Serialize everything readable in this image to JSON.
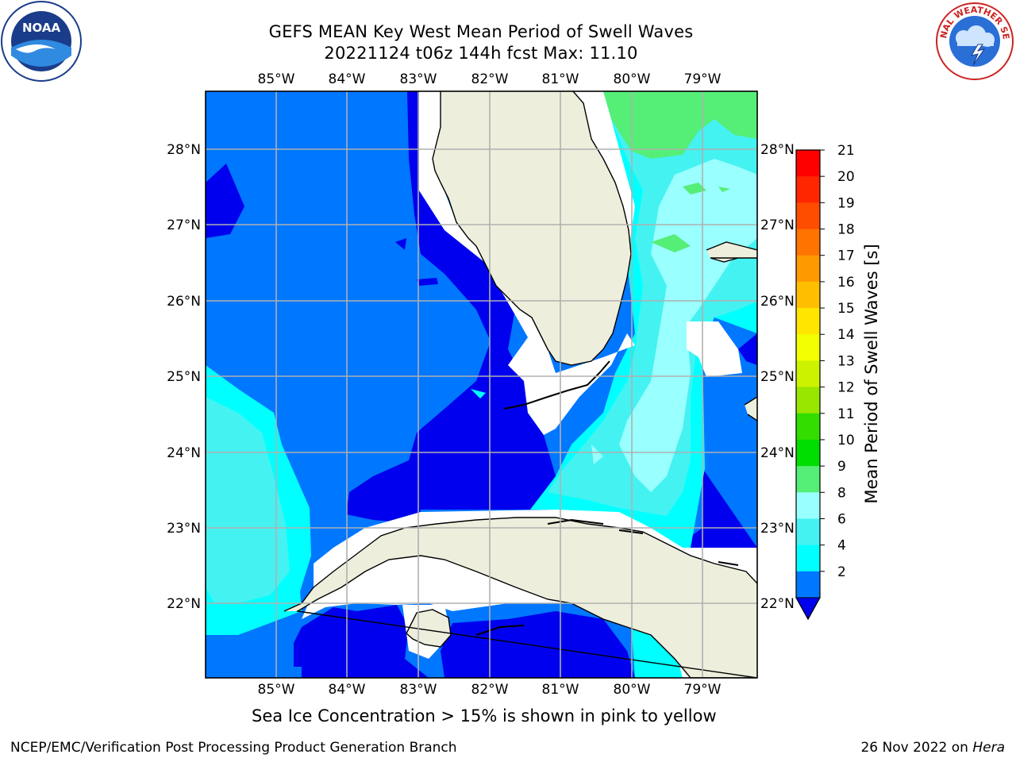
{
  "header": {
    "title_line1": "GEFS MEAN Key West Mean Period of Swell Waves",
    "title_line2": "20221124 t06z 144h fcst   Max: 11.10"
  },
  "logos": {
    "left": {
      "icon": "noaa-logo-icon",
      "text": "NOAA"
    },
    "right": {
      "icon": "nws-logo-icon",
      "text": "NATIONAL WEATHER SERVICE"
    }
  },
  "map": {
    "lon_ticks": [
      "85°W",
      "84°W",
      "83°W",
      "82°W",
      "81°W",
      "80°W",
      "79°W"
    ],
    "lat_ticks": [
      "28°N",
      "27°N",
      "26°N",
      "25°N",
      "24°N",
      "23°N",
      "22°N"
    ],
    "colors": {
      "ocean_2_4": "#0077ff",
      "ocean_lt2": "#0000ee",
      "ocean_4_6": "#00ffff",
      "ocean_6_8": "#44f2f2",
      "ocean_8_9": "#99ffff",
      "ocean_9_10": "#55ee77",
      "land": "#eeeedd",
      "nodata": "#ffffff",
      "grid": "#b0b0b0"
    }
  },
  "colorbar": {
    "label": "Mean Period of Swell Waves [s]",
    "ticks": [
      "21",
      "20",
      "19",
      "18",
      "17",
      "16",
      "15",
      "14",
      "13",
      "12",
      "11",
      "10",
      "9",
      "8",
      "6",
      "4",
      "2"
    ],
    "colors": [
      "#ff0000",
      "#ff2600",
      "#ff4d00",
      "#ff7300",
      "#ff9900",
      "#ffbf00",
      "#ffe600",
      "#f2ff00",
      "#ccf200",
      "#99e600",
      "#33dd00",
      "#00dd00",
      "#55ee77",
      "#99ffff",
      "#44f2f2",
      "#00ffff",
      "#0077ff"
    ],
    "extend_color": "#0000ee"
  },
  "caption": "Sea Ice Concentration > 15% is shown in pink to yellow",
  "footer": {
    "left": "NCEP/EMC/Verification Post Processing Product Generation Branch",
    "right_date": "26 Nov 2022 on ",
    "right_host": "Hera"
  }
}
